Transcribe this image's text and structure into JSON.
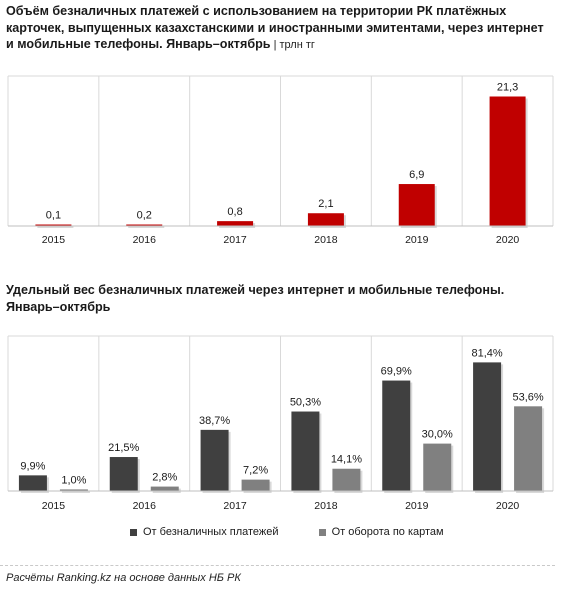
{
  "chart1": {
    "title": "Объём безналичных платежей  с использованием на территории РК платёжных карточек, выпущенных казахстанскими и иностранными эмитентами, через интернет и мобильные телефоны. Январь–октябрь",
    "unit": " | трлн тг"
  },
  "chart2": {
    "title": "Удельный вес безналичных платежей через интернет и мобильные телефоны. Январь–октябрь"
  },
  "legend": {
    "series1": "От безналичных платежей",
    "series2": "От оборота по картам"
  },
  "source": "Расчёты Ranking.kz на основе данных НБ РК",
  "colors": {
    "red": "#c00000",
    "dark": "#404040",
    "gray": "#808080",
    "grid": "#d9d9d9"
  },
  "chart_data": [
    {
      "type": "bar",
      "title": "Объём безналичных платежей  с использованием на территории РК платёжных карточек, выпущенных казахстанскими и иностранными эмитентами, через интернет и мобильные телефоны. Январь–октябрь",
      "ylabel": "трлн тг",
      "categories": [
        "2015",
        "2016",
        "2017",
        "2018",
        "2019",
        "2020"
      ],
      "values": [
        0.1,
        0.2,
        0.8,
        2.1,
        6.9,
        21.3
      ],
      "labels": [
        "0,1",
        "0,2",
        "0,8",
        "2,1",
        "6,9",
        "21,3"
      ],
      "ylim": [
        0,
        25
      ],
      "grid": false
    },
    {
      "type": "bar",
      "title": "Удельный вес безналичных платежей через интернет и мобильные телефоны. Январь–октябрь",
      "categories": [
        "2015",
        "2016",
        "2017",
        "2018",
        "2019",
        "2020"
      ],
      "series": [
        {
          "name": "От безналичных платежей",
          "values": [
            9.9,
            21.5,
            38.7,
            50.3,
            69.9,
            81.4
          ],
          "labels": [
            "9,9%",
            "21,5%",
            "38,7%",
            "50,3%",
            "69,9%",
            "81,4%"
          ]
        },
        {
          "name": "От оборота по картам",
          "values": [
            1.0,
            2.8,
            7.2,
            14.1,
            30.0,
            53.6
          ],
          "labels": [
            "1,0%",
            "2,8%",
            "7,2%",
            "14,1%",
            "30,0%",
            "53,6%"
          ]
        }
      ],
      "ylim": [
        0,
        100
      ],
      "legend": "bottom",
      "grid": false
    }
  ]
}
